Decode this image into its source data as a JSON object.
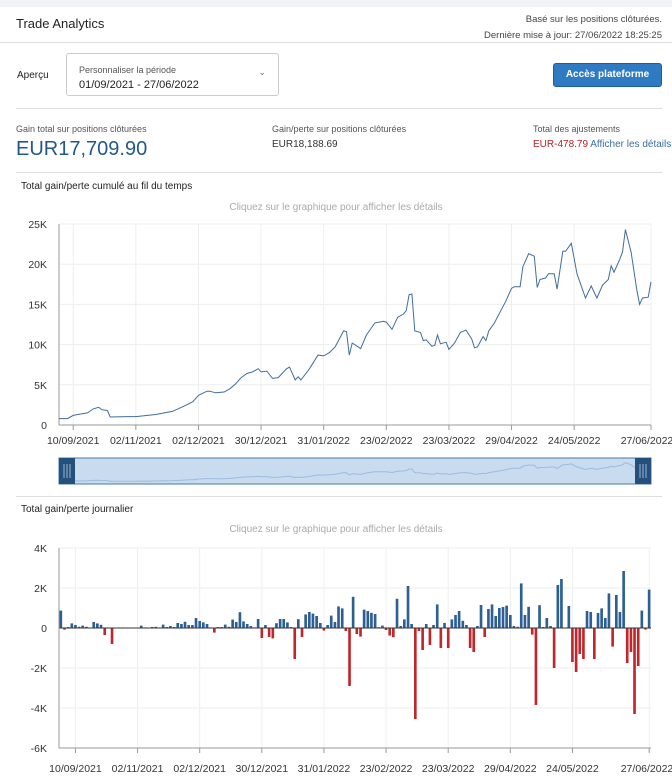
{
  "header": {
    "title": "Trade Analytics",
    "basis": "Basé sur les positions clôturées.",
    "updated": "Dernière mise à jour: 27/06/2022 18:25:25"
  },
  "controls": {
    "apercu_label": "Aperçu",
    "period_label": "Personnaliser la période",
    "period_value": "01/09/2021 - 27/06/2022",
    "platform_button": "Accès plateforme"
  },
  "stats": {
    "total_label": "Gain total sur positions clôturées",
    "total_value": "EUR17,709.90",
    "pl_label": "Gain/perte sur positions clôturées",
    "pl_value": "EUR18,188.69",
    "adj_label": "Total des ajustements",
    "adj_value": "EUR-478.79",
    "adj_link": "Afficher les détails"
  },
  "colors": {
    "accent": "#2e7bc4",
    "value": "#24578a",
    "line": "#3f6d9e",
    "positive": "#2d5f94",
    "negative": "#c0272d"
  },
  "chart_data": [
    {
      "type": "line",
      "title": "Total gain/perte cumulé au fil du temps",
      "hint": "Cliquez sur le graphique pour afficher les détails",
      "xlim": [
        0,
        208
      ],
      "ylim": [
        0,
        25000
      ],
      "yticks": [
        {
          "v": 0,
          "label": "0"
        },
        {
          "v": 5000,
          "label": "5K"
        },
        {
          "v": 10000,
          "label": "10K"
        },
        {
          "v": 15000,
          "label": "15K"
        },
        {
          "v": 20000,
          "label": "20K"
        },
        {
          "v": 25000,
          "label": "25K"
        }
      ],
      "xticks": [
        {
          "i": 5,
          "label": "10/09/2021"
        },
        {
          "i": 27,
          "label": "02/11/2021"
        },
        {
          "i": 49,
          "label": "02/12/2021"
        },
        {
          "i": 71,
          "label": "30/12/2021"
        },
        {
          "i": 93,
          "label": "31/01/2022"
        },
        {
          "i": 115,
          "label": "23/02/2022"
        },
        {
          "i": 137,
          "label": "23/03/2022"
        },
        {
          "i": 159,
          "label": "29/04/2022"
        },
        {
          "i": 181,
          "label": "24/05/2022"
        },
        {
          "i": 208,
          "label": "27/06/2022"
        }
      ],
      "grid": true,
      "navigator": true,
      "points": [
        [
          0,
          800
        ],
        [
          3,
          800
        ],
        [
          5,
          1200
        ],
        [
          8,
          1400
        ],
        [
          10,
          1500
        ],
        [
          12,
          2000
        ],
        [
          14,
          2200
        ],
        [
          15,
          1900
        ],
        [
          17,
          1800
        ],
        [
          18,
          1000
        ],
        [
          24,
          1050
        ],
        [
          27,
          1050
        ],
        [
          34,
          1300
        ],
        [
          40,
          1700
        ],
        [
          43,
          2200
        ],
        [
          46,
          2700
        ],
        [
          47,
          2900
        ],
        [
          49,
          3700
        ],
        [
          52,
          4200
        ],
        [
          53,
          4200
        ],
        [
          55,
          4000
        ],
        [
          58,
          4100
        ],
        [
          60,
          4500
        ],
        [
          62,
          5100
        ],
        [
          64,
          5900
        ],
        [
          66,
          6400
        ],
        [
          68,
          6600
        ],
        [
          70,
          7000
        ],
        [
          71,
          6600
        ],
        [
          73,
          6700
        ],
        [
          75,
          5800
        ],
        [
          77,
          5900
        ],
        [
          80,
          7000
        ],
        [
          81,
          7200
        ],
        [
          83,
          5600
        ],
        [
          84,
          6000
        ],
        [
          85,
          5600
        ],
        [
          88,
          7000
        ],
        [
          91,
          8700
        ],
        [
          93,
          8600
        ],
        [
          95,
          9000
        ],
        [
          97,
          9700
        ],
        [
          100,
          11700
        ],
        [
          101,
          11600
        ],
        [
          102,
          8700
        ],
        [
          103,
          10200
        ],
        [
          106,
          9500
        ],
        [
          108,
          11200
        ],
        [
          111,
          12700
        ],
        [
          114,
          12900
        ],
        [
          115,
          12800
        ],
        [
          117,
          11900
        ],
        [
          119,
          13400
        ],
        [
          121,
          13800
        ],
        [
          122,
          14200
        ],
        [
          123,
          16200
        ],
        [
          124,
          16300
        ],
        [
          125,
          11700
        ],
        [
          127,
          11500
        ],
        [
          128,
          10500
        ],
        [
          129,
          10600
        ],
        [
          131,
          9800
        ],
        [
          132,
          9900
        ],
        [
          133,
          11200
        ],
        [
          134,
          10100
        ],
        [
          136,
          10300
        ],
        [
          137,
          9400
        ],
        [
          139,
          10200
        ],
        [
          141,
          11500
        ],
        [
          143,
          11800
        ],
        [
          145,
          10700
        ],
        [
          146,
          9600
        ],
        [
          147,
          9700
        ],
        [
          149,
          11000
        ],
        [
          150,
          10500
        ],
        [
          151,
          11700
        ],
        [
          153,
          12700
        ],
        [
          154,
          13400
        ],
        [
          157,
          15400
        ],
        [
          159,
          17000
        ],
        [
          160,
          17200
        ],
        [
          162,
          17200
        ],
        [
          163,
          19700
        ],
        [
          164,
          20500
        ],
        [
          165,
          21300
        ],
        [
          167,
          21000
        ],
        [
          168,
          17100
        ],
        [
          169,
          18100
        ],
        [
          171,
          18300
        ],
        [
          172,
          18800
        ],
        [
          174,
          18800
        ],
        [
          175,
          16900
        ],
        [
          177,
          21600
        ],
        [
          178,
          21600
        ],
        [
          180,
          22600
        ],
        [
          182,
          18800
        ],
        [
          185,
          15800
        ],
        [
          187,
          17300
        ],
        [
          189,
          15800
        ],
        [
          191,
          17400
        ],
        [
          193,
          18100
        ],
        [
          194,
          19800
        ],
        [
          195,
          19000
        ],
        [
          197,
          20600
        ],
        [
          198,
          21500
        ],
        [
          199,
          24300
        ],
        [
          201,
          21500
        ],
        [
          203,
          16800
        ],
        [
          204,
          15000
        ],
        [
          205,
          15800
        ],
        [
          207,
          15900
        ],
        [
          208,
          17800
        ]
      ]
    },
    {
      "type": "bar",
      "title": "Total gain/perte journalier",
      "hint": "Cliquez sur le graphique pour afficher les détails",
      "ylim": [
        -6000,
        4000
      ],
      "yticks": [
        {
          "v": -6000,
          "label": "-6K"
        },
        {
          "v": -4000,
          "label": "-4K"
        },
        {
          "v": -2000,
          "label": "-2K"
        },
        {
          "v": 0,
          "label": "0"
        },
        {
          "v": 2000,
          "label": "2K"
        },
        {
          "v": 4000,
          "label": "4K"
        }
      ],
      "xticks": [
        {
          "i": 4,
          "label": "10/09/2021"
        },
        {
          "i": 21,
          "label": "02/11/2021"
        },
        {
          "i": 38,
          "label": "02/12/2021"
        },
        {
          "i": 55,
          "label": "30/12/2021"
        },
        {
          "i": 72,
          "label": "31/01/2022"
        },
        {
          "i": 89,
          "label": "23/02/2022"
        },
        {
          "i": 106,
          "label": "23/03/2022"
        },
        {
          "i": 123,
          "label": "29/04/2022"
        },
        {
          "i": 140,
          "label": "24/05/2022"
        },
        {
          "i": 161,
          "label": "27/06/2022"
        }
      ],
      "grid": true,
      "values": [
        870,
        -80,
        50,
        230,
        150,
        60,
        120,
        60,
        0,
        300,
        230,
        160,
        -350,
        0,
        -800,
        0,
        0,
        0,
        0,
        0,
        0,
        0,
        120,
        30,
        0,
        50,
        60,
        0,
        170,
        50,
        100,
        50,
        250,
        200,
        310,
        150,
        150,
        500,
        350,
        280,
        200,
        30,
        -230,
        50,
        50,
        170,
        60,
        420,
        300,
        790,
        330,
        200,
        100,
        30,
        450,
        -500,
        150,
        -450,
        -520,
        240,
        450,
        450,
        280,
        50,
        -1550,
        440,
        -450,
        680,
        800,
        720,
        600,
        250,
        -130,
        150,
        620,
        300,
        1080,
        980,
        -150,
        -2900,
        1560,
        -300,
        -430,
        920,
        850,
        760,
        700,
        40,
        120,
        -100,
        -380,
        -460,
        1460,
        100,
        430,
        2100,
        200,
        -4550,
        -150,
        -1100,
        200,
        -850,
        150,
        1180,
        -1000,
        250,
        -1000,
        430,
        650,
        850,
        360,
        150,
        -1000,
        -1200,
        100,
        1150,
        -450,
        950,
        1180,
        600,
        1000,
        1050,
        1120,
        650,
        100,
        60,
        2230,
        650,
        1060,
        -330,
        -3850,
        1140,
        50,
        500,
        100,
        -2000,
        2150,
        2450,
        0,
        1100,
        -1700,
        -2200,
        -1300,
        -1550,
        850,
        800,
        -1550,
        750,
        980,
        500,
        1730,
        -930,
        1650,
        800,
        2850,
        -1750,
        -1200,
        -4300,
        -1900,
        870,
        -80,
        1920
      ]
    }
  ]
}
